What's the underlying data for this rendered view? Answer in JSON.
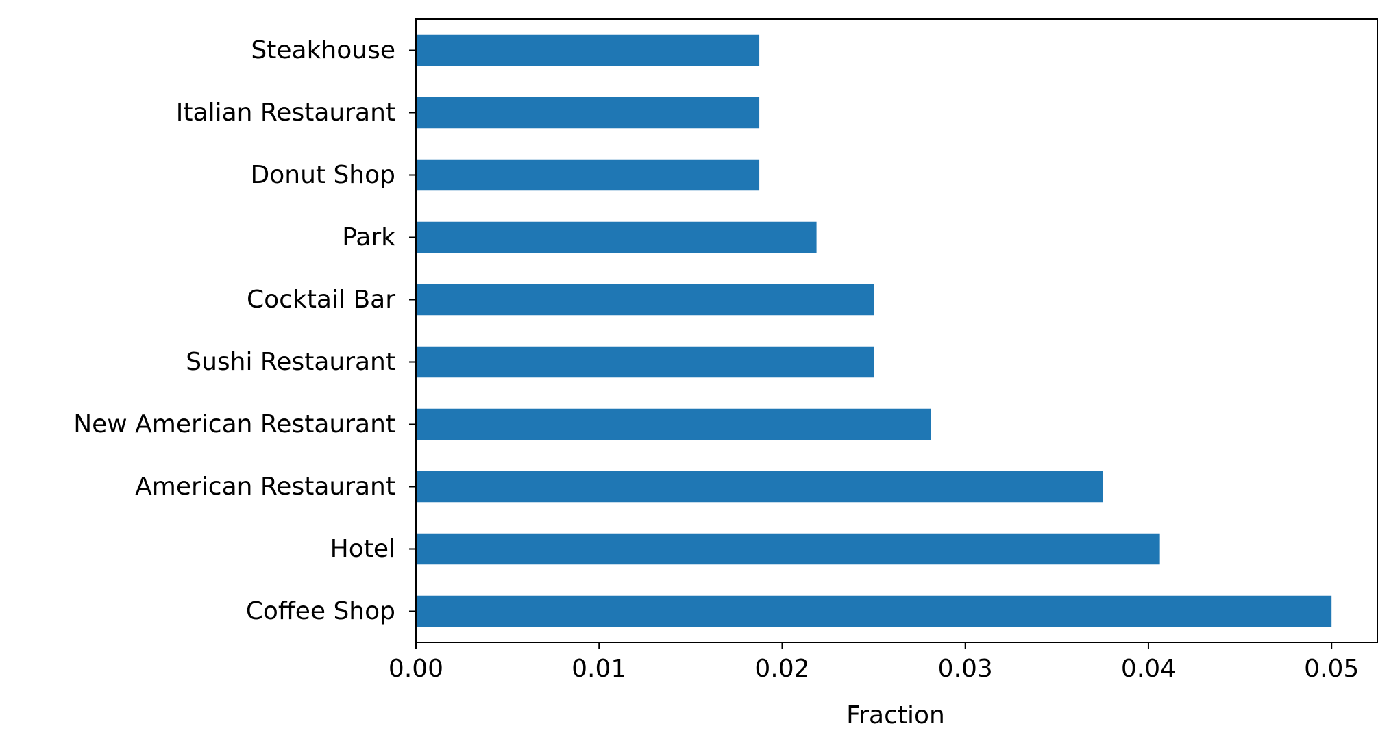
{
  "chart_data": {
    "type": "bar",
    "orientation": "horizontal",
    "categories": [
      "Coffee Shop",
      "Hotel",
      "American Restaurant",
      "New American Restaurant",
      "Sushi Restaurant",
      "Cocktail Bar",
      "Park",
      "Donut Shop",
      "Italian Restaurant",
      "Steakhouse"
    ],
    "values": [
      0.05,
      0.040625,
      0.0375,
      0.028125,
      0.025,
      0.025,
      0.021875,
      0.01875,
      0.01875,
      0.01875
    ],
    "title": "",
    "xlabel": "Fraction",
    "ylabel": "",
    "xlim": [
      0,
      0.0525
    ],
    "xticks": [
      0.0,
      0.01,
      0.02,
      0.03,
      0.04,
      0.05
    ],
    "xtick_labels": [
      "0.00",
      "0.01",
      "0.02",
      "0.03",
      "0.04",
      "0.05"
    ],
    "grid": false,
    "bar_color": "#1f77b4"
  }
}
